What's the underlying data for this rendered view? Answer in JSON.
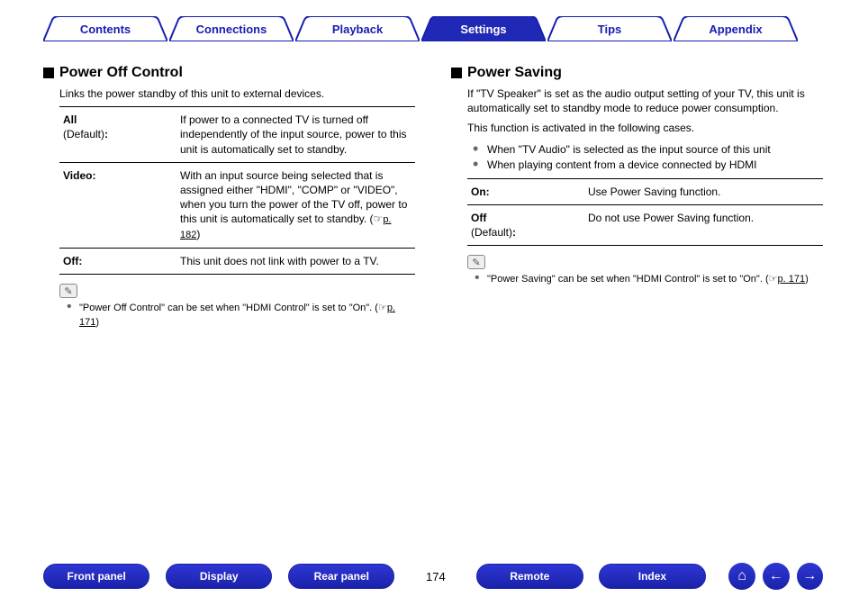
{
  "tabs": {
    "items": [
      "Contents",
      "Connections",
      "Playback",
      "Settings",
      "Tips",
      "Appendix"
    ],
    "active_index": 3,
    "fill": "#ffffff",
    "fill_active": "#1f29b5",
    "stroke": "#1720b0",
    "text": "#1720b0",
    "text_active": "#ffffff"
  },
  "left": {
    "title": "Power Off Control",
    "intro": "Links the power standby of this unit to external devices.",
    "rows": [
      {
        "k1": "All",
        "k2": "(Default):",
        "v": "If power to a connected TV is turned off independently of the input source, power to this unit is automatically set to standby."
      },
      {
        "k1": "Video:",
        "k2": "",
        "v": "With an input source being selected that is assigned either \"HDMI\", \"COMP\" or \"VIDEO\", when you turn the power of the TV off, power to this unit is automatically set to standby.  (☞",
        "link": "p. 182",
        "tail": ")"
      },
      {
        "k1": "Off:",
        "k2": "",
        "v": "This unit does not link with power to a TV."
      }
    ],
    "note": "\"Power Off Control\" can be set when \"HDMI Control\" is set to \"On\".  (☞",
    "note_link": "p. 171",
    "note_tail": ")"
  },
  "right": {
    "title": "Power Saving",
    "intro": "If \"TV Speaker\" is set as the audio output setting of your TV, this unit is automatically set to standby mode to reduce power consumption.",
    "intro2": "This function is activated in the following cases.",
    "bullets": [
      "When \"TV Audio\" is selected as the input source of this unit",
      "When playing content from a device connected by HDMI"
    ],
    "rows": [
      {
        "k1": "On:",
        "k2": "",
        "v": "Use Power Saving function."
      },
      {
        "k1": "Off",
        "k2": "(Default):",
        "v": "Do not use Power Saving function."
      }
    ],
    "note": "\"Power Saving\" can be set when \"HDMI Control\" is set to \"On\".  (☞",
    "note_link": "p. 171",
    "note_tail": ")"
  },
  "bottom": {
    "pills": [
      "Front panel",
      "Display",
      "Rear panel"
    ],
    "page": "174",
    "pills2": [
      "Remote",
      "Index"
    ],
    "pill_bg": "#2630c8"
  }
}
